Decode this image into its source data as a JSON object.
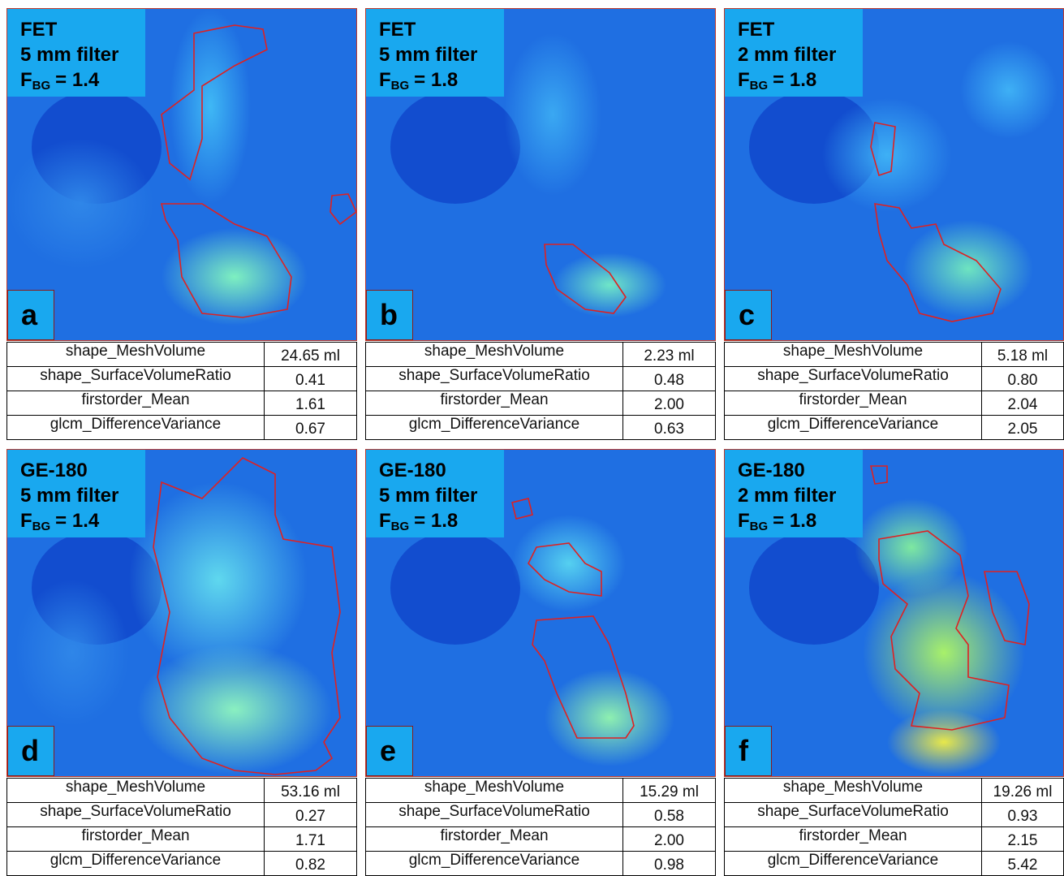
{
  "panels": [
    {
      "tracer": "FET",
      "filter": "5 mm filter",
      "fbg": {
        "symbol": "F",
        "subscript": "BG",
        "value": "= 1.4"
      },
      "letter": "a",
      "table": [
        [
          "shape_MeshVolume",
          "24.65 ml"
        ],
        [
          "shape_SurfaceVolumeRatio",
          "0.41"
        ],
        [
          "firstorder_Mean",
          "1.61"
        ],
        [
          "glcm_DifferenceVariance",
          "0.67"
        ]
      ]
    },
    {
      "tracer": "FET",
      "filter": "5 mm filter",
      "fbg": {
        "symbol": "F",
        "subscript": "BG",
        "value": "= 1.8"
      },
      "letter": "b",
      "table": [
        [
          "shape_MeshVolume",
          "2.23 ml"
        ],
        [
          "shape_SurfaceVolumeRatio",
          "0.48"
        ],
        [
          "firstorder_Mean",
          "2.00"
        ],
        [
          "glcm_DifferenceVariance",
          "0.63"
        ]
      ]
    },
    {
      "tracer": "FET",
      "filter": "2 mm filter",
      "fbg": {
        "symbol": "F",
        "subscript": "BG",
        "value": "= 1.8"
      },
      "letter": "c",
      "table": [
        [
          "shape_MeshVolume",
          "5.18 ml"
        ],
        [
          "shape_SurfaceVolumeRatio",
          "0.80"
        ],
        [
          "firstorder_Mean",
          "2.04"
        ],
        [
          "glcm_DifferenceVariance",
          "2.05"
        ]
      ]
    },
    {
      "tracer": "GE-180",
      "filter": "5 mm filter",
      "fbg": {
        "symbol": "F",
        "subscript": "BG",
        "value": "= 1.4"
      },
      "letter": "d",
      "table": [
        [
          "shape_MeshVolume",
          "53.16 ml"
        ],
        [
          "shape_SurfaceVolumeRatio",
          "0.27"
        ],
        [
          "firstorder_Mean",
          "1.71"
        ],
        [
          "glcm_DifferenceVariance",
          "0.82"
        ]
      ]
    },
    {
      "tracer": "GE-180",
      "filter": "5 mm filter",
      "fbg": {
        "symbol": "F",
        "subscript": "BG",
        "value": "= 1.8"
      },
      "letter": "e",
      "table": [
        [
          "shape_MeshVolume",
          "15.29 ml"
        ],
        [
          "shape_SurfaceVolumeRatio",
          "0.58"
        ],
        [
          "firstorder_Mean",
          "2.00"
        ],
        [
          "glcm_DifferenceVariance",
          "0.98"
        ]
      ]
    },
    {
      "tracer": "GE-180",
      "filter": "2 mm filter",
      "fbg": {
        "symbol": "F",
        "subscript": "BG",
        "value": "= 1.8"
      },
      "letter": "f",
      "table": [
        [
          "shape_MeshVolume",
          "19.26 ml"
        ],
        [
          "shape_SurfaceVolumeRatio",
          "0.93"
        ],
        [
          "firstorder_Mean",
          "2.15"
        ],
        [
          "glcm_DifferenceVariance",
          "5.42"
        ]
      ]
    }
  ]
}
